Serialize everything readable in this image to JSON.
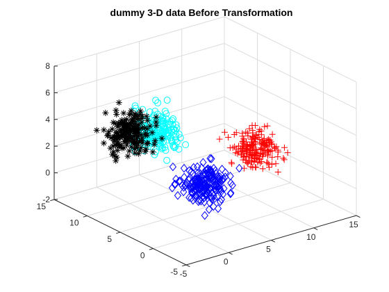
{
  "chart_data": {
    "type": "scatter",
    "title": "dummy 3-D data Before Transformation",
    "xlabel": "",
    "ylabel": "",
    "zlabel": "",
    "view": "3d-default",
    "grid": true,
    "legend": "none",
    "xlim": [
      -5,
      15
    ],
    "ylim": [
      -5,
      15
    ],
    "zlim": [
      -2,
      8
    ],
    "xticks": [
      "-5",
      "0",
      "5",
      "10",
      "15"
    ],
    "yticks": [
      "-5",
      "0",
      "5",
      "10",
      "15"
    ],
    "zticks": [
      "-2",
      "0",
      "2",
      "4",
      "6",
      "8"
    ],
    "series": [
      {
        "marker": "asterisk",
        "color": "#000000",
        "center": [
          0,
          10,
          3.3
        ],
        "spread": [
          1.1,
          1.1,
          0.7
        ],
        "count": 200
      },
      {
        "marker": "circle",
        "color": "#00ffff",
        "center": [
          3,
          10,
          2.8
        ],
        "spread": [
          1.1,
          1.1,
          0.7
        ],
        "count": 200
      },
      {
        "marker": "diamond",
        "color": "#0000ff",
        "center": [
          5,
          5,
          -0.2
        ],
        "spread": [
          1.1,
          1.1,
          0.7
        ],
        "count": 200
      },
      {
        "marker": "plus",
        "color": "#ff0000",
        "center": [
          11,
          5,
          1.3
        ],
        "spread": [
          1.1,
          1.1,
          0.7
        ],
        "count": 200
      }
    ]
  }
}
